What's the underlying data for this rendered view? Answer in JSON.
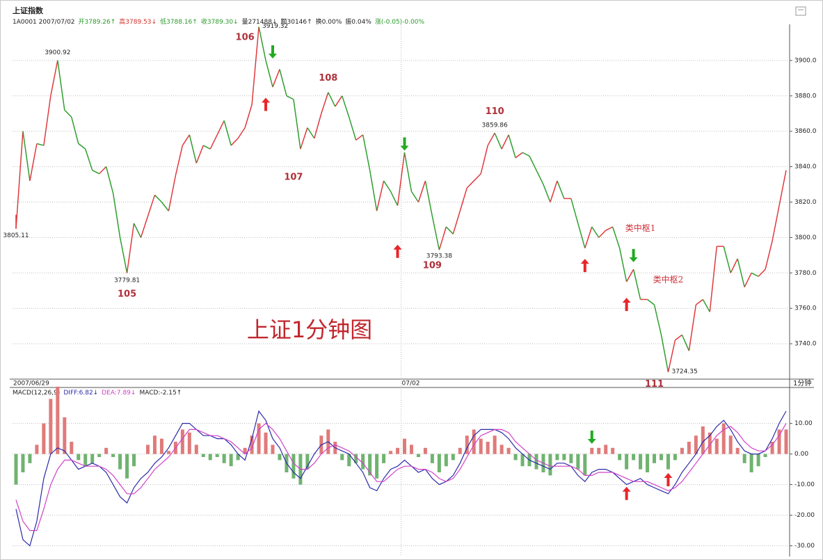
{
  "chart_data": [
    {
      "type": "candle-line",
      "title": "上证指数",
      "subtitle": "1A0001 2007/07/02",
      "header_items": [
        {
          "text": "开3789.26↑",
          "color": "#2a9a2a"
        },
        {
          "text": "高3789.53↓",
          "color": "#d0302a"
        },
        {
          "text": "低3788.16↑",
          "color": "#2a9a2a"
        },
        {
          "text": "收3789.30↓",
          "color": "#2a9a2a"
        },
        {
          "text": "量271488↓",
          "color": "#222222"
        },
        {
          "text": "额30146↑",
          "color": "#222222"
        },
        {
          "text": "换0.00%",
          "color": "#222222"
        },
        {
          "text": "振0.04%",
          "color": "#222222"
        },
        {
          "text": "涨(-0.05)-0.00%",
          "color": "#2a9a2a"
        }
      ],
      "big_label": "上证1分钟图",
      "period_label": "1分钟",
      "categories": [
        "2007/06/29",
        null,
        null,
        null,
        null,
        null,
        null,
        null,
        null,
        null,
        null,
        null,
        null,
        null,
        null,
        null,
        null,
        null,
        null,
        null,
        null,
        null,
        null,
        null,
        null,
        null,
        null,
        null,
        null,
        null,
        null,
        null,
        null,
        null,
        null,
        null,
        null,
        null,
        null,
        null,
        null,
        null,
        null,
        null,
        null,
        null,
        null,
        null,
        null,
        null,
        null,
        null,
        null,
        null,
        null,
        null,
        "07/02",
        null,
        null,
        null,
        null,
        null,
        null,
        null,
        null,
        null,
        null,
        null,
        null,
        null,
        null,
        null,
        null,
        null,
        null,
        null,
        null,
        null,
        null,
        null,
        null,
        null,
        null,
        null,
        null,
        null,
        null,
        null,
        null,
        null,
        null,
        null,
        null,
        null,
        null,
        null,
        null,
        null,
        null,
        null,
        null,
        null,
        null,
        null,
        null,
        null,
        null,
        null,
        null,
        null,
        null,
        null
      ],
      "values": [
        3805,
        3860,
        3832,
        3853,
        3852,
        3880,
        3900,
        3872,
        3868,
        3853,
        3850,
        3838,
        3836,
        3840,
        3825,
        3800,
        3780,
        3808,
        3800,
        3812,
        3824,
        3820,
        3815,
        3835,
        3852,
        3858,
        3842,
        3852,
        3850,
        3858,
        3866,
        3852,
        3856,
        3862,
        3875,
        3919,
        3900,
        3885,
        3895,
        3880,
        3878,
        3850,
        3862,
        3856,
        3870,
        3882,
        3874,
        3880,
        3868,
        3855,
        3858,
        3838,
        3815,
        3832,
        3826,
        3818,
        3848,
        3826,
        3820,
        3832,
        3812,
        3793,
        3806,
        3802,
        3815,
        3828,
        3832,
        3836,
        3852,
        3859,
        3850,
        3858,
        3845,
        3848,
        3846,
        3838,
        3830,
        3820,
        3832,
        3822,
        3822,
        3808,
        3794,
        3806,
        3800,
        3804,
        3806,
        3794,
        3775,
        3782,
        3765,
        3765,
        3762,
        3745,
        3724,
        3742,
        3745,
        3736,
        3762,
        3765,
        3758,
        3795,
        3795,
        3780,
        3788,
        3772,
        3780,
        3778,
        3782,
        3798,
        3818,
        3838
      ],
      "up_color": "#e0393e",
      "down_color": "#2e9e2e",
      "ylim": [
        3720,
        3920
      ],
      "yticks": [
        {
          "value": 3740,
          "label": "3740.0"
        },
        {
          "value": 3760,
          "label": "3760.0"
        },
        {
          "value": 3780,
          "label": "3780.0"
        },
        {
          "value": 3800,
          "label": "3800.0"
        },
        {
          "value": 3820,
          "label": "3820.0"
        },
        {
          "value": 3840,
          "label": "3840.0"
        },
        {
          "value": 3860,
          "label": "3860.0"
        },
        {
          "value": 3880,
          "label": "3880.0"
        },
        {
          "value": 3900,
          "label": "3900.0"
        }
      ],
      "grid": true,
      "price_labels": [
        {
          "value": 3900.92,
          "label": "3900.92",
          "index": 6,
          "position": "above"
        },
        {
          "value": 3919.32,
          "label": "3919.32",
          "index": 35,
          "position": "right"
        },
        {
          "value": 3779.81,
          "label": "3779.81",
          "index": 16,
          "position": "below"
        },
        {
          "value": 3805.11,
          "label": "3805.11",
          "index": 0,
          "position": "below"
        },
        {
          "value": 3793.38,
          "label": "3793.38",
          "index": 61,
          "position": "below"
        },
        {
          "value": 3859.86,
          "label": "3859.86",
          "index": 69,
          "position": "above"
        },
        {
          "value": 3724.35,
          "label": "3724.35",
          "index": 94,
          "position": "right"
        }
      ],
      "wave_labels": [
        {
          "text": "105",
          "index": 16,
          "y": 3768
        },
        {
          "text": "106",
          "index": 33,
          "y": 3913
        },
        {
          "text": "107",
          "index": 40,
          "y": 3834
        },
        {
          "text": "108",
          "index": 45,
          "y": 3890
        },
        {
          "text": "109",
          "index": 60,
          "y": 3784
        },
        {
          "text": "110",
          "index": 69,
          "y": 3871
        },
        {
          "text": "111",
          "index": 92,
          "y": 3717
        }
      ],
      "notes": [
        {
          "text": "类中枢1",
          "index": 90,
          "y": 3805
        },
        {
          "text": "类中枢2",
          "index": 94,
          "y": 3776
        }
      ],
      "arrows": [
        {
          "index": 37,
          "y": 3905,
          "direction": "down"
        },
        {
          "index": 36,
          "y": 3875,
          "direction": "up"
        },
        {
          "index": 56,
          "y": 3853,
          "direction": "down"
        },
        {
          "index": 55,
          "y": 3792,
          "direction": "up"
        },
        {
          "index": 82,
          "y": 3784,
          "direction": "up"
        },
        {
          "index": 89,
          "y": 3790,
          "direction": "down"
        },
        {
          "index": 88,
          "y": 3762,
          "direction": "up"
        }
      ]
    },
    {
      "type": "macd",
      "title": "MACD(12,26,9)",
      "series": [
        {
          "name": "DIFF:6.82↓",
          "color": "#2a2aa8",
          "kind": "line",
          "values": [
            -18,
            -28,
            -30,
            -22,
            -8,
            0,
            2,
            1,
            -2,
            -5,
            -4,
            -3,
            -4,
            -6,
            -10,
            -14,
            -16,
            -11,
            -8,
            -6,
            -3,
            -1,
            2,
            6,
            10,
            10,
            8,
            6,
            6,
            5,
            5,
            3,
            0,
            -2,
            5,
            14,
            11,
            5,
            2,
            -3,
            -6,
            -8,
            -4,
            0,
            3,
            4,
            2,
            1,
            0,
            -3,
            -6,
            -11,
            -12,
            -8,
            -5,
            -4,
            -2,
            -4,
            -6,
            -5,
            -8,
            -10,
            -9,
            -7,
            -3,
            2,
            6,
            8,
            8,
            8,
            7,
            5,
            2,
            0,
            -2,
            -3,
            -4,
            -5,
            -3,
            -3,
            -4,
            -7,
            -9,
            -6,
            -5,
            -5,
            -6,
            -8,
            -10,
            -9,
            -8,
            -10,
            -11,
            -12,
            -13,
            -10,
            -6,
            -3,
            0,
            4,
            6,
            9,
            11,
            8,
            4,
            1,
            0,
            0,
            1,
            5,
            10,
            14
          ]
        },
        {
          "name": "DEA:7.89↓",
          "color": "#d040c8",
          "kind": "line",
          "values": [
            -15,
            -22,
            -25,
            -25,
            -18,
            -10,
            -5,
            -2,
            -2,
            -3,
            -4,
            -4,
            -4,
            -5,
            -7,
            -10,
            -13,
            -13,
            -11,
            -8,
            -5,
            -3,
            -1,
            2,
            5,
            8,
            8,
            7,
            6,
            6,
            5,
            4,
            2,
            0,
            2,
            8,
            10,
            8,
            5,
            1,
            -3,
            -5,
            -5,
            -3,
            0,
            2,
            3,
            2,
            1,
            -1,
            -3,
            -6,
            -9,
            -9,
            -7,
            -5,
            -4,
            -4,
            -5,
            -5,
            -6,
            -8,
            -9,
            -8,
            -5,
            -1,
            3,
            6,
            7,
            8,
            8,
            7,
            4,
            2,
            0,
            -2,
            -3,
            -4,
            -4,
            -4,
            -4,
            -5,
            -7,
            -7,
            -6,
            -6,
            -6,
            -7,
            -8,
            -9,
            -9,
            -9,
            -10,
            -11,
            -12,
            -11,
            -9,
            -6,
            -3,
            0,
            3,
            6,
            8,
            9,
            7,
            4,
            2,
            1,
            1,
            3,
            6,
            10
          ]
        },
        {
          "name": "MACD:-2.15↑",
          "color": "#222222",
          "kind": "histogram",
          "values": [
            -10,
            -6,
            -3,
            3,
            10,
            18,
            22,
            12,
            4,
            -2,
            -4,
            -3,
            -1,
            2,
            -1,
            -5,
            -8,
            -4,
            0,
            3,
            6,
            5,
            1,
            4,
            8,
            7,
            3,
            -1,
            -2,
            -1,
            -3,
            -4,
            -2,
            2,
            6,
            10,
            7,
            3,
            -2,
            -6,
            -8,
            -10,
            -5,
            0,
            6,
            8,
            4,
            -2,
            -4,
            -3,
            -5,
            -7,
            -8,
            -3,
            1,
            2,
            5,
            3,
            -1,
            2,
            -3,
            -6,
            -4,
            -2,
            2,
            6,
            8,
            5,
            4,
            6,
            3,
            2,
            -2,
            -4,
            -4,
            -5,
            -6,
            -7,
            -2,
            -2,
            -3,
            -5,
            -7,
            2,
            2,
            3,
            2,
            -2,
            -5,
            -2,
            -5,
            -6,
            -3,
            -2,
            -5,
            -2,
            2,
            4,
            6,
            9,
            7,
            5,
            10,
            6,
            2,
            -3,
            -6,
            -4,
            -1,
            4,
            8,
            8
          ]
        }
      ],
      "up_color": "#e07a7a",
      "down_color": "#6fb36f",
      "ylim": [
        -33.5,
        21.5
      ],
      "yticks": [
        {
          "value": 10,
          "label": "10.00"
        },
        {
          "value": 0,
          "label": "0.00"
        },
        {
          "value": -10,
          "label": "-10.00"
        },
        {
          "value": -20,
          "label": "-20.00"
        },
        {
          "value": -30,
          "label": "-30.00"
        }
      ],
      "grid": true,
      "arrows": [
        {
          "index": 83,
          "y": 5.6,
          "direction": "down"
        },
        {
          "index": 88,
          "y": -13,
          "direction": "up"
        },
        {
          "index": 94,
          "y": -8.5,
          "direction": "up"
        }
      ]
    }
  ]
}
